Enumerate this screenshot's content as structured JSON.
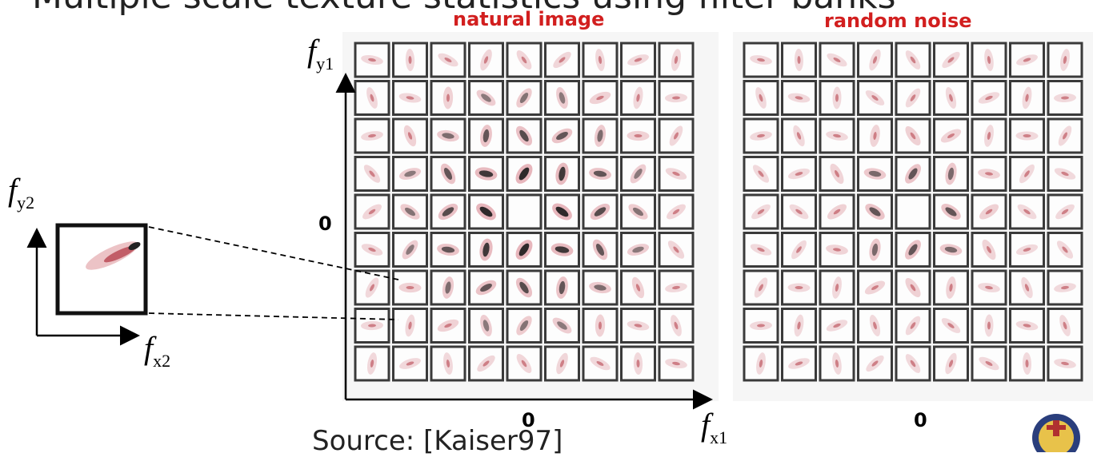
{
  "slide": {
    "top_text": "Multiple scale texture statistics using filter banks",
    "source_text": "Source: [Kaiser97]"
  },
  "panels": [
    {
      "title": "natural image",
      "x_zero": "0",
      "y_zero": "0",
      "kind": "natural"
    },
    {
      "title": "random noise",
      "x_zero": "0",
      "kind": "noise"
    }
  ],
  "axes": {
    "main_y": {
      "base": "f",
      "sub": "y1"
    },
    "main_x": {
      "base": "f",
      "sub": "x1"
    },
    "inset_y": {
      "base": "f",
      "sub": "y2"
    },
    "inset_x": {
      "base": "f",
      "sub": "x2"
    }
  },
  "colors": {
    "title_red": "#d21f1f",
    "cell_border": "#333333",
    "blob_red": "#c8505a",
    "blob_dark": "#1a1a1a"
  },
  "logo": {
    "name": "university-seal"
  }
}
